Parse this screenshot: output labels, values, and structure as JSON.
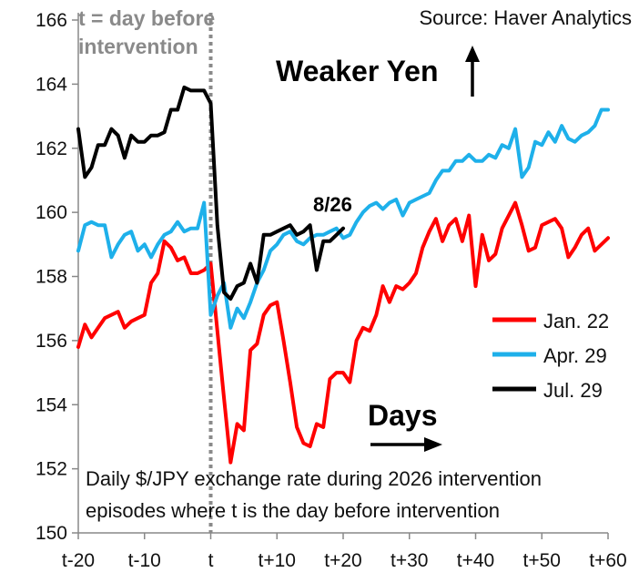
{
  "chart_data": {
    "type": "line",
    "source": "Source: Haver Analytics",
    "direction_label": "Weaker Yen",
    "days_label": "Days",
    "t_annotation": [
      "t = day before",
      "intervention"
    ],
    "end_label": "8/26",
    "description": [
      "Daily $/JPY exchange rate during 2026 intervention",
      "episodes where t is the day before intervention"
    ],
    "x_ticks": [
      {
        "x": -20,
        "label": "t-20"
      },
      {
        "x": -10,
        "label": "t-10"
      },
      {
        "x": 0,
        "label": "t"
      },
      {
        "x": 10,
        "label": "t+10"
      },
      {
        "x": 20,
        "label": "t+20"
      },
      {
        "x": 30,
        "label": "t+30"
      },
      {
        "x": 40,
        "label": "t+40"
      },
      {
        "x": 50,
        "label": "t+50"
      },
      {
        "x": 60,
        "label": "t+60"
      }
    ],
    "y_ticks": [
      150,
      152,
      154,
      156,
      158,
      160,
      162,
      164,
      166
    ],
    "xlim": [
      -20,
      60
    ],
    "ylim": [
      150,
      166
    ],
    "grid": false,
    "legend_position": "lower-right",
    "series": [
      {
        "name": "Jan. 22",
        "color": "#ff0000",
        "x": [
          -20,
          -19,
          -18,
          -17,
          -16,
          -15,
          -14,
          -13,
          -12,
          -11,
          -10,
          -9,
          -8,
          -7,
          -6,
          -5,
          -4,
          -3,
          -2,
          -1,
          0,
          1,
          2,
          3,
          4,
          5,
          6,
          7,
          8,
          9,
          10,
          11,
          12,
          13,
          14,
          15,
          16,
          17,
          18,
          19,
          20,
          21,
          22,
          23,
          24,
          25,
          26,
          27,
          28,
          29,
          30,
          31,
          32,
          33,
          34,
          35,
          36,
          37,
          38,
          39,
          40,
          41,
          42,
          43,
          44,
          45,
          46,
          47,
          48,
          49,
          50,
          51,
          52,
          53,
          54,
          55,
          56,
          57,
          58,
          59,
          60
        ],
        "values": [
          155.8,
          156.5,
          156.1,
          156.4,
          156.7,
          156.8,
          156.9,
          156.4,
          156.6,
          156.7,
          156.8,
          157.8,
          158.1,
          159.1,
          158.9,
          158.5,
          158.6,
          158.1,
          158.1,
          158.2,
          158.4,
          156.3,
          154.2,
          152.2,
          153.4,
          153.2,
          155.7,
          155.9,
          156.8,
          157.1,
          157.2,
          156.0,
          154.7,
          153.3,
          152.8,
          152.7,
          153.4,
          153.3,
          154.8,
          155.0,
          155.0,
          154.7,
          156.0,
          156.4,
          156.3,
          156.8,
          157.7,
          157.2,
          157.7,
          157.6,
          157.8,
          158.1,
          158.9,
          159.4,
          159.8,
          159.1,
          159.6,
          159.8,
          159.1,
          159.9,
          157.7,
          159.3,
          158.5,
          158.7,
          159.5,
          159.9,
          160.3,
          159.6,
          158.8,
          158.9,
          159.6,
          159.7,
          159.8,
          159.5,
          158.6,
          158.9,
          159.3,
          159.5,
          158.8,
          159.0,
          159.2
        ],
        "line_width": 4
      },
      {
        "name": "Apr. 29",
        "color": "#1eb0ea",
        "x": [
          -20,
          -19,
          -18,
          -17,
          -16,
          -15,
          -14,
          -13,
          -12,
          -11,
          -10,
          -9,
          -8,
          -7,
          -6,
          -5,
          -4,
          -3,
          -2,
          -1,
          0,
          1,
          2,
          3,
          4,
          5,
          6,
          7,
          8,
          9,
          10,
          11,
          12,
          13,
          14,
          15,
          16,
          17,
          18,
          19,
          20,
          21,
          22,
          23,
          24,
          25,
          26,
          27,
          28,
          29,
          30,
          31,
          32,
          33,
          34,
          35,
          36,
          37,
          38,
          39,
          40,
          41,
          42,
          43,
          44,
          45,
          46,
          47,
          48,
          49,
          50,
          51,
          52,
          53,
          54,
          55,
          56,
          57,
          58,
          59,
          60
        ],
        "values": [
          158.8,
          159.6,
          159.7,
          159.6,
          159.6,
          158.6,
          159.0,
          159.3,
          159.4,
          158.8,
          159.0,
          158.6,
          159.0,
          159.3,
          159.4,
          159.7,
          159.4,
          159.5,
          159.5,
          160.3,
          156.8,
          157.4,
          157.8,
          156.4,
          157.0,
          156.7,
          157.2,
          157.8,
          158.2,
          158.8,
          159.0,
          159.3,
          159.4,
          159.1,
          159.0,
          159.2,
          159.3,
          159.3,
          159.4,
          159.5,
          159.2,
          159.3,
          159.7,
          160.0,
          160.2,
          160.3,
          160.1,
          160.3,
          160.4,
          159.9,
          160.3,
          160.4,
          160.5,
          160.6,
          161.0,
          161.3,
          161.3,
          161.6,
          161.6,
          161.8,
          161.6,
          161.6,
          161.8,
          161.7,
          162.1,
          162.0,
          162.6,
          161.1,
          161.4,
          162.2,
          162.1,
          162.5,
          162.2,
          162.7,
          162.3,
          162.2,
          162.4,
          162.5,
          162.7,
          163.2,
          163.2
        ],
        "line_width": 4
      },
      {
        "name": "Jul. 29",
        "color": "#000000",
        "x": [
          -20,
          -19,
          -18,
          -17,
          -16,
          -15,
          -14,
          -13,
          -12,
          -11,
          -10,
          -9,
          -8,
          -7,
          -6,
          -5,
          -4,
          -3,
          -2,
          -1,
          0,
          1,
          2,
          3,
          4,
          5,
          6,
          7,
          8,
          9,
          10,
          11,
          12,
          13,
          14,
          15,
          16,
          17,
          18,
          19,
          20
        ],
        "values": [
          162.6,
          161.1,
          161.4,
          162.1,
          162.1,
          162.6,
          162.4,
          161.7,
          162.4,
          162.2,
          162.2,
          162.4,
          162.4,
          162.5,
          163.2,
          163.2,
          163.9,
          163.8,
          163.8,
          163.8,
          163.4,
          159.6,
          157.5,
          157.3,
          157.7,
          157.8,
          158.4,
          157.8,
          159.3,
          159.3,
          159.4,
          159.5,
          159.6,
          159.3,
          159.4,
          159.6,
          158.2,
          159.1,
          159.1,
          159.3,
          159.5
        ],
        "line_width": 4
      }
    ]
  }
}
